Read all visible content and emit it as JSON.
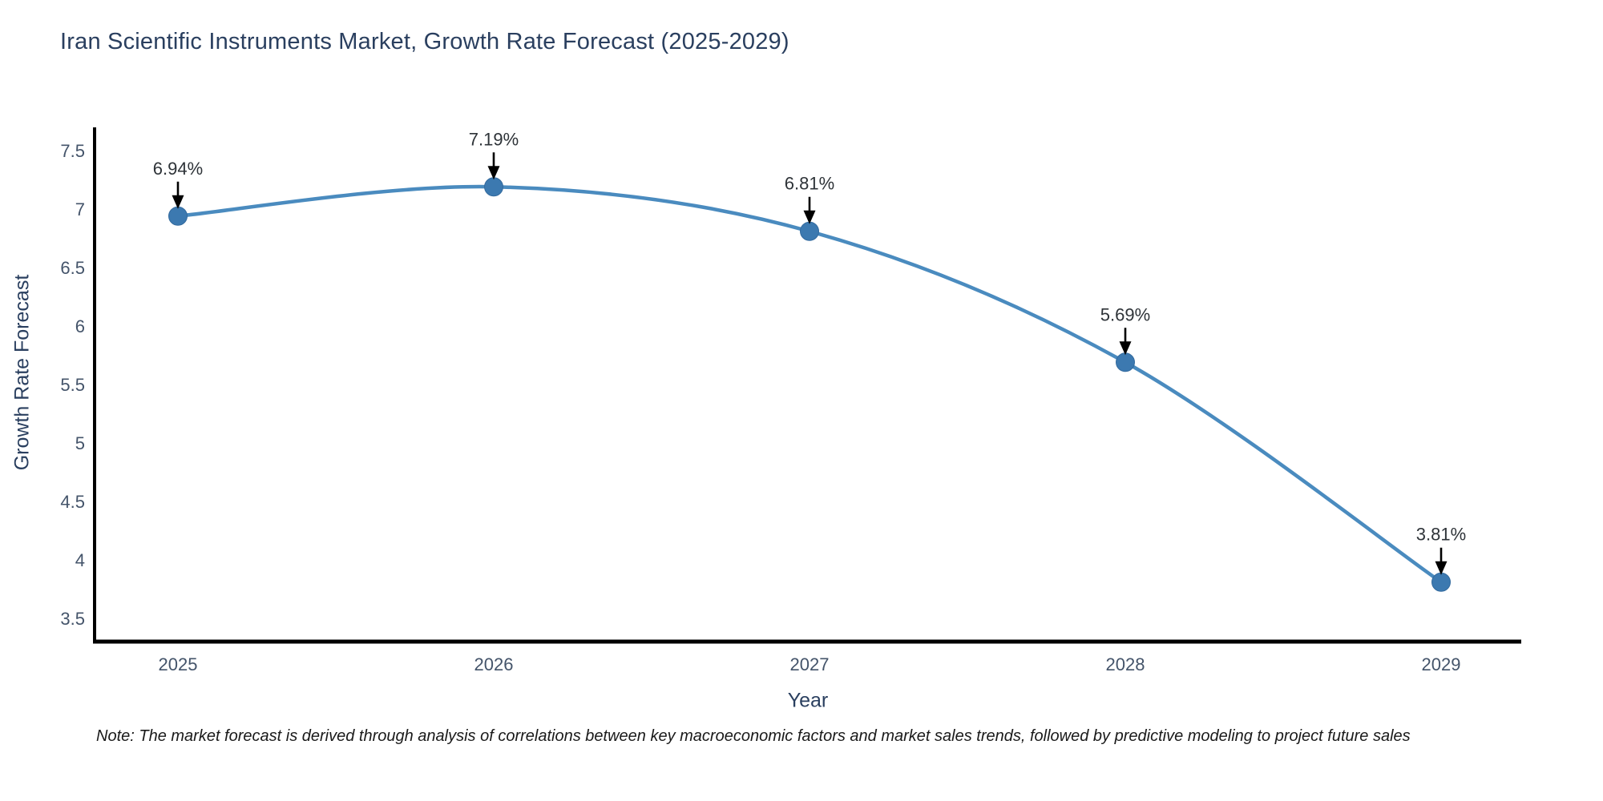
{
  "chart_data": {
    "type": "line",
    "title": "Iran Scientific Instruments Market, Growth Rate Forecast (2025-2029)",
    "xlabel": "Year",
    "ylabel": "Growth Rate Forecast",
    "x": [
      "2025",
      "2026",
      "2027",
      "2028",
      "2029"
    ],
    "series": [
      {
        "name": "Growth Rate Forecast",
        "values": [
          6.94,
          7.19,
          6.81,
          5.69,
          3.81
        ],
        "point_labels": [
          "6.94%",
          "7.19%",
          "6.81%",
          "5.69%",
          "3.81%"
        ]
      }
    ],
    "yticks": [
      7.5,
      7,
      6.5,
      6,
      5.5,
      5,
      4.5,
      4,
      3.5
    ],
    "ylim": [
      3.28,
      7.72
    ],
    "grid": false,
    "legend_position": "none",
    "line_shape": "spline",
    "annotations_style": "value label with black arrow pointing down at each marker",
    "note": "Note: The market forecast is derived through analysis of correlations between key macroeconomic factors and market sales trends, followed by predictive modeling to project future sales",
    "colors": {
      "line": "#4a8bbf",
      "marker": "#3c79b0",
      "marker_edge": "#336a9e",
      "arrow": "#000000",
      "axis": "#000000",
      "title_text": "#2a3f5f",
      "tick_text": "#44546a",
      "annotation_text": "#2e3338",
      "note_text": "#1a1a1a",
      "background": "#ffffff"
    }
  }
}
